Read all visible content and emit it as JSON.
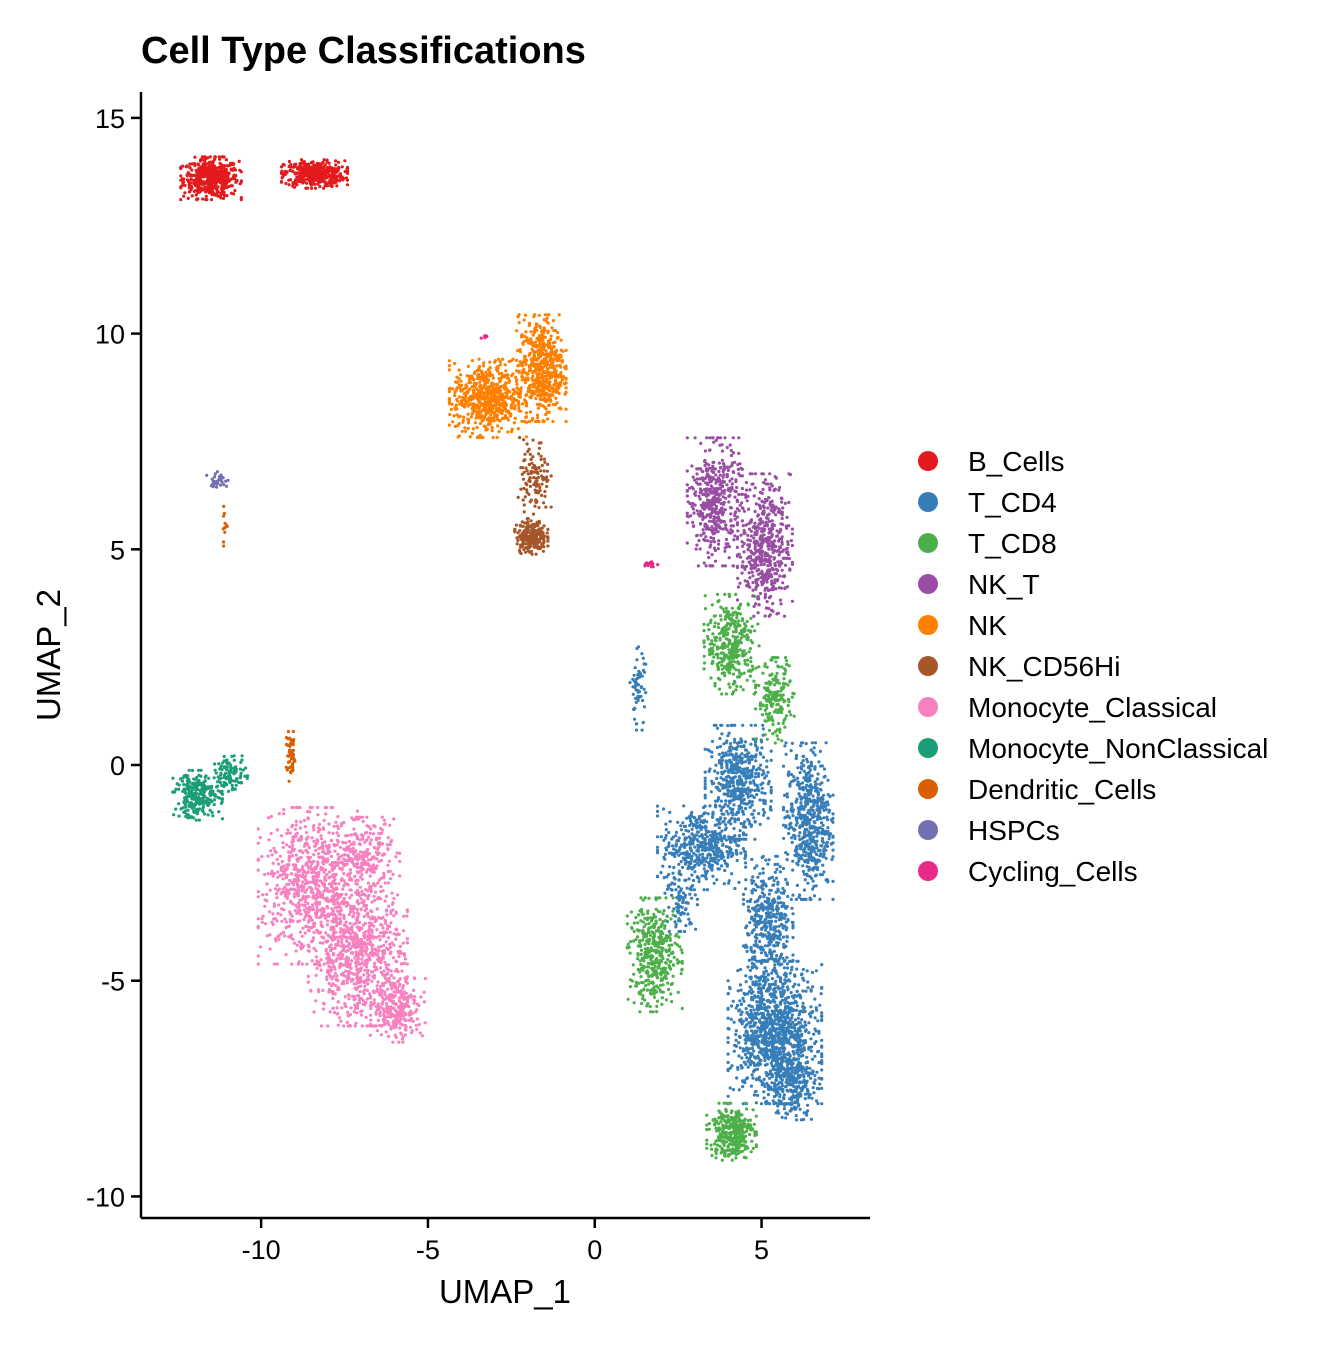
{
  "chart_data": {
    "type": "scatter",
    "title": "Cell Type Classifications",
    "xlabel": "UMAP_1",
    "ylabel": "UMAP_2",
    "xlim": [
      -13.6,
      8.25
    ],
    "ylim": [
      -10.5,
      15.6
    ],
    "xticks": [
      -10,
      -5,
      0,
      5
    ],
    "xtick_labels": [
      "-10",
      "-5",
      "0",
      "5"
    ],
    "yticks": [
      -10,
      -5,
      0,
      5,
      10,
      15
    ],
    "ytick_labels": [
      "-10",
      "-5",
      "0",
      "5",
      "10",
      "15"
    ],
    "grid": false,
    "legend_position": "right",
    "series": [
      {
        "name": "B_Cells",
        "color": "#E41A1C",
        "regions": [
          [
            -11.5,
            13.6,
            0.55,
            0.3,
            500
          ],
          [
            -8.4,
            13.7,
            0.6,
            0.2,
            420
          ]
        ]
      },
      {
        "name": "T_CD4",
        "color": "#377EB8",
        "regions": [
          [
            4.3,
            -0.4,
            0.6,
            0.8,
            500
          ],
          [
            3.2,
            -1.9,
            0.8,
            0.6,
            450
          ],
          [
            6.4,
            -1.3,
            0.45,
            1.1,
            550
          ],
          [
            5.2,
            -3.6,
            0.45,
            0.9,
            400
          ],
          [
            5.4,
            -6.2,
            0.85,
            1.0,
            1100
          ],
          [
            5.9,
            -7.4,
            0.5,
            0.5,
            250
          ],
          [
            1.3,
            1.8,
            0.15,
            0.6,
            60
          ],
          [
            2.6,
            -3.2,
            0.3,
            0.4,
            80
          ]
        ]
      },
      {
        "name": "T_CD8",
        "color": "#4DAF4A",
        "regions": [
          [
            4.1,
            2.8,
            0.5,
            0.7,
            350
          ],
          [
            5.4,
            1.5,
            0.35,
            0.6,
            180
          ],
          [
            1.8,
            -4.4,
            0.5,
            0.8,
            400
          ],
          [
            4.1,
            -8.5,
            0.45,
            0.4,
            330
          ]
        ]
      },
      {
        "name": "NK_T",
        "color": "#984EA3",
        "regions": [
          [
            3.6,
            6.1,
            0.5,
            0.9,
            450
          ],
          [
            5.1,
            5.1,
            0.5,
            1.0,
            500
          ]
        ]
      },
      {
        "name": "NK",
        "color": "#FF7F00",
        "regions": [
          [
            -3.2,
            8.5,
            0.7,
            0.55,
            600
          ],
          [
            -1.6,
            9.2,
            0.45,
            0.75,
            550
          ]
        ]
      },
      {
        "name": "NK_CD56Hi",
        "color": "#A65628",
        "regions": [
          [
            -1.9,
            5.3,
            0.3,
            0.25,
            220
          ],
          [
            -1.8,
            6.6,
            0.3,
            0.6,
            120
          ]
        ]
      },
      {
        "name": "Monocyte_Classical",
        "color": "#F781BF",
        "regions": [
          [
            -8.6,
            -2.8,
            0.9,
            1.1,
            700
          ],
          [
            -7.1,
            -4.4,
            0.9,
            1.0,
            800
          ],
          [
            -5.9,
            -5.6,
            0.5,
            0.5,
            250
          ],
          [
            -7.0,
            -2.2,
            0.7,
            0.6,
            300
          ]
        ]
      },
      {
        "name": "Monocyte_NonClassical",
        "color": "#1B9E77",
        "regions": [
          [
            -11.9,
            -0.7,
            0.45,
            0.35,
            260
          ],
          [
            -10.9,
            -0.2,
            0.3,
            0.25,
            100
          ]
        ]
      },
      {
        "name": "Dendritic_Cells",
        "color": "#D95F02",
        "regions": [
          [
            -9.1,
            0.2,
            0.1,
            0.35,
            60
          ],
          [
            -11.1,
            5.5,
            0.06,
            0.3,
            12
          ]
        ]
      },
      {
        "name": "HSPCs",
        "color": "#7570B3",
        "regions": [
          [
            -11.3,
            6.6,
            0.2,
            0.12,
            35
          ]
        ]
      },
      {
        "name": "Cycling_Cells",
        "color": "#E7298A",
        "regions": [
          [
            1.7,
            4.65,
            0.12,
            0.05,
            14
          ],
          [
            -3.3,
            9.95,
            0.08,
            0.04,
            6
          ]
        ]
      }
    ]
  }
}
